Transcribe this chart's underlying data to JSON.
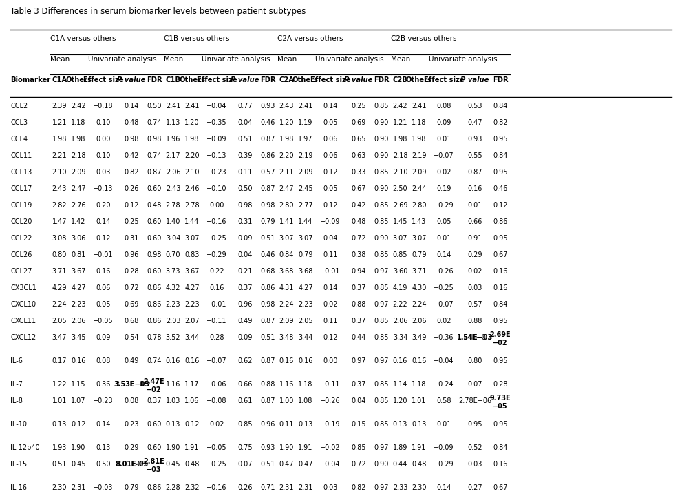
{
  "title": "Table 3 Differences in serum biomarker levels between patient subtypes",
  "col_headers": [
    "Biomarker",
    "C1A",
    "Others",
    "Effect size",
    "P value",
    "FDR",
    "C1B",
    "Others",
    "Effect size",
    "P value",
    "FDR",
    "C2A",
    "Others",
    "Effect size",
    "P value",
    "FDR",
    "C2B",
    "Others",
    "Effect size",
    "P value",
    "FDR"
  ],
  "rows": [
    [
      "CCL2",
      "2.39",
      "2.42",
      "−0.18",
      "0.14",
      "0.50",
      "2.41",
      "2.41",
      "−0.04",
      "0.77",
      "0.93",
      "2.43",
      "2.41",
      "0.14",
      "0.25",
      "0.85",
      "2.42",
      "2.41",
      "0.08",
      "0.53",
      "0.84"
    ],
    [
      "CCL3",
      "1.21",
      "1.18",
      "0.10",
      "0.48",
      "0.74",
      "1.13",
      "1.20",
      "−0.35",
      "0.04",
      "0.46",
      "1.20",
      "1.19",
      "0.05",
      "0.69",
      "0.90",
      "1.21",
      "1.18",
      "0.09",
      "0.47",
      "0.82"
    ],
    [
      "CCL4",
      "1.98",
      "1.98",
      "0.00",
      "0.98",
      "0.98",
      "1.96",
      "1.98",
      "−0.09",
      "0.51",
      "0.87",
      "1.98",
      "1.97",
      "0.06",
      "0.65",
      "0.90",
      "1.98",
      "1.98",
      "0.01",
      "0.93",
      "0.95"
    ],
    [
      "CCL11",
      "2.21",
      "2.18",
      "0.10",
      "0.42",
      "0.74",
      "2.17",
      "2.20",
      "−0.13",
      "0.39",
      "0.86",
      "2.20",
      "2.19",
      "0.06",
      "0.63",
      "0.90",
      "2.18",
      "2.19",
      "−0.07",
      "0.55",
      "0.84"
    ],
    [
      "CCL13",
      "2.10",
      "2.09",
      "0.03",
      "0.82",
      "0.87",
      "2.06",
      "2.10",
      "−0.23",
      "0.11",
      "0.57",
      "2.11",
      "2.09",
      "0.12",
      "0.33",
      "0.85",
      "2.10",
      "2.09",
      "0.02",
      "0.87",
      "0.95"
    ],
    [
      "CCL17",
      "2.43",
      "2.47",
      "−0.13",
      "0.26",
      "0.60",
      "2.43",
      "2.46",
      "−0.10",
      "0.50",
      "0.87",
      "2.47",
      "2.45",
      "0.05",
      "0.67",
      "0.90",
      "2.50",
      "2.44",
      "0.19",
      "0.16",
      "0.46"
    ],
    [
      "CCL19",
      "2.82",
      "2.76",
      "0.20",
      "0.12",
      "0.48",
      "2.78",
      "2.78",
      "0.00",
      "0.98",
      "0.98",
      "2.80",
      "2.77",
      "0.12",
      "0.42",
      "0.85",
      "2.69",
      "2.80",
      "−0.29",
      "0.01",
      "0.12"
    ],
    [
      "CCL20",
      "1.47",
      "1.42",
      "0.14",
      "0.25",
      "0.60",
      "1.40",
      "1.44",
      "−0.16",
      "0.31",
      "0.79",
      "1.41",
      "1.44",
      "−0.09",
      "0.48",
      "0.85",
      "1.45",
      "1.43",
      "0.05",
      "0.66",
      "0.86"
    ],
    [
      "CCL22",
      "3.08",
      "3.06",
      "0.12",
      "0.31",
      "0.60",
      "3.04",
      "3.07",
      "−0.25",
      "0.09",
      "0.51",
      "3.07",
      "3.07",
      "0.04",
      "0.72",
      "0.90",
      "3.07",
      "3.07",
      "0.01",
      "0.91",
      "0.95"
    ],
    [
      "CCL26",
      "0.80",
      "0.81",
      "−0.01",
      "0.96",
      "0.98",
      "0.70",
      "0.83",
      "−0.29",
      "0.04",
      "0.46",
      "0.84",
      "0.79",
      "0.11",
      "0.38",
      "0.85",
      "0.85",
      "0.79",
      "0.14",
      "0.29",
      "0.67"
    ],
    [
      "CCL27",
      "3.71",
      "3.67",
      "0.16",
      "0.28",
      "0.60",
      "3.73",
      "3.67",
      "0.22",
      "0.21",
      "0.68",
      "3.68",
      "3.68",
      "−0.01",
      "0.94",
      "0.97",
      "3.60",
      "3.71",
      "−0.26",
      "0.02",
      "0.16"
    ],
    [
      "CX3CL1",
      "4.29",
      "4.27",
      "0.06",
      "0.72",
      "0.86",
      "4.32",
      "4.27",
      "0.16",
      "0.37",
      "0.86",
      "4.31",
      "4.27",
      "0.14",
      "0.37",
      "0.85",
      "4.19",
      "4.30",
      "−0.25",
      "0.03",
      "0.16"
    ],
    [
      "CXCL10",
      "2.24",
      "2.23",
      "0.05",
      "0.69",
      "0.86",
      "2.23",
      "2.23",
      "−0.01",
      "0.96",
      "0.98",
      "2.24",
      "2.23",
      "0.02",
      "0.88",
      "0.97",
      "2.22",
      "2.24",
      "−0.07",
      "0.57",
      "0.84"
    ],
    [
      "CXCL11",
      "2.05",
      "2.06",
      "−0.05",
      "0.68",
      "0.86",
      "2.03",
      "2.07",
      "−0.11",
      "0.49",
      "0.87",
      "2.09",
      "2.05",
      "0.11",
      "0.37",
      "0.85",
      "2.06",
      "2.06",
      "0.02",
      "0.88",
      "0.95"
    ],
    [
      "CXCL12",
      "3.47",
      "3.45",
      "0.09",
      "0.54",
      "0.78",
      "3.52",
      "3.44",
      "0.28",
      "0.09",
      "0.51",
      "3.48",
      "3.44",
      "0.12",
      "0.44",
      "0.85",
      "3.34",
      "3.49",
      "−0.36",
      "1.54E−0 3",
      "__BOLD__2.69E\n−02"
    ],
    [
      "IL-6",
      "0.17",
      "0.16",
      "0.08",
      "0.49",
      "0.74",
      "0.16",
      "0.16",
      "−0.07",
      "0.62",
      "0.87",
      "0.16",
      "0.16",
      "0.00",
      "0.97",
      "0.97",
      "0.16",
      "0.16",
      "−0.04",
      "0.80",
      "0.95"
    ],
    [
      "IL-7",
      "1.22",
      "1.15",
      "0.36",
      "3.53E−03",
      "__BOLD__2.47E\n−02",
      "1.16",
      "1.17",
      "−0.06",
      "0.66",
      "0.88",
      "1.16",
      "1.18",
      "−0.11",
      "0.37",
      "0.85",
      "1.14",
      "1.18",
      "−0.24",
      "0.07",
      "0.28"
    ],
    [
      "IL-8",
      "1.01",
      "1.07",
      "−0.23",
      "0.08",
      "0.37",
      "1.03",
      "1.06",
      "−0.08",
      "0.61",
      "0.87",
      "1.00",
      "1.08",
      "−0.26",
      "0.04",
      "0.85",
      "1.20",
      "1.01",
      "0.58",
      "2.78E−06",
      "__BOLD__9.73E\n−05"
    ],
    [
      "IL-10",
      "0.13",
      "0.12",
      "0.14",
      "0.23",
      "0.60",
      "0.13",
      "0.12",
      "0.02",
      "0.85",
      "0.96",
      "0.11",
      "0.13",
      "−0.19",
      "0.15",
      "0.85",
      "0.13",
      "0.13",
      "0.01",
      "0.95",
      "0.95"
    ],
    [
      "IL-12p40",
      "1.93",
      "1.90",
      "0.13",
      "0.29",
      "0.60",
      "1.90",
      "1.91",
      "−0.05",
      "0.75",
      "0.93",
      "1.90",
      "1.91",
      "−0.02",
      "0.85",
      "0.97",
      "1.89",
      "1.91",
      "−0.09",
      "0.52",
      "0.84"
    ],
    [
      "IL-15",
      "0.51",
      "0.45",
      "0.50",
      "8.01E-05",
      "__BOLD__2.81E\n−03",
      "0.45",
      "0.48",
      "−0.25",
      "0.07",
      "0.51",
      "0.47",
      "0.47",
      "−0.04",
      "0.72",
      "0.90",
      "0.44",
      "0.48",
      "−0.29",
      "0.03",
      "0.16"
    ],
    [
      "IL-16",
      "2.30",
      "2.31",
      "−0.03",
      "0.79",
      "0.86",
      "2.28",
      "2.32",
      "−0.16",
      "0.26",
      "0.71",
      "2.31",
      "2.31",
      "0.03",
      "0.82",
      "0.97",
      "2.33",
      "2.30",
      "0.14",
      "0.27",
      "0.67"
    ]
  ],
  "gap_before_rows": [
    15,
    16,
    18,
    19,
    21
  ],
  "background_color": "#ffffff",
  "text_color": "#000000"
}
